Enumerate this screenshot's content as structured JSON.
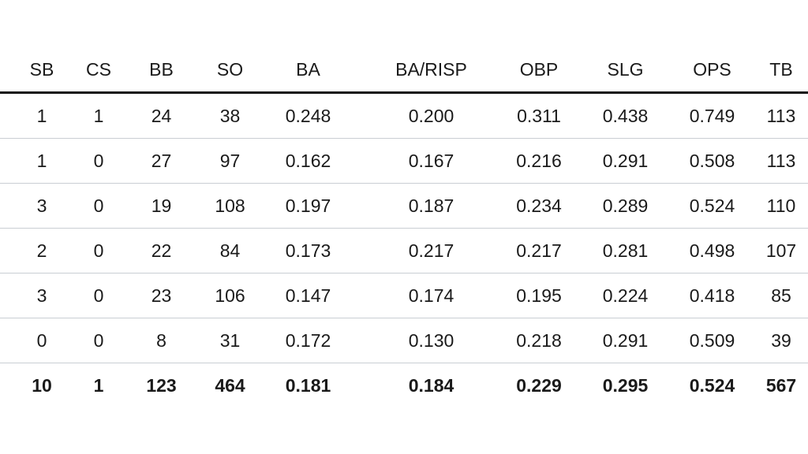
{
  "table": {
    "headers": [
      "SB",
      "CS",
      "BB",
      "SO",
      "BA",
      "BA/RISP",
      "OBP",
      "SLG",
      "OPS",
      "TB"
    ],
    "rows": [
      [
        "1",
        "1",
        "24",
        "38",
        "0.248",
        "0.200",
        "0.311",
        "0.438",
        "0.749",
        "113"
      ],
      [
        "1",
        "0",
        "27",
        "97",
        "0.162",
        "0.167",
        "0.216",
        "0.291",
        "0.508",
        "113"
      ],
      [
        "3",
        "0",
        "19",
        "108",
        "0.197",
        "0.187",
        "0.234",
        "0.289",
        "0.524",
        "110"
      ],
      [
        "2",
        "0",
        "22",
        "84",
        "0.173",
        "0.217",
        "0.217",
        "0.281",
        "0.498",
        "107"
      ],
      [
        "3",
        "0",
        "23",
        "106",
        "0.147",
        "0.174",
        "0.195",
        "0.224",
        "0.418",
        "85"
      ],
      [
        "0",
        "0",
        "8",
        "31",
        "0.172",
        "0.130",
        "0.218",
        "0.291",
        "0.509",
        "39"
      ]
    ],
    "totals": [
      "10",
      "1",
      "123",
      "464",
      "0.181",
      "0.184",
      "0.229",
      "0.295",
      "0.524",
      "567"
    ]
  }
}
